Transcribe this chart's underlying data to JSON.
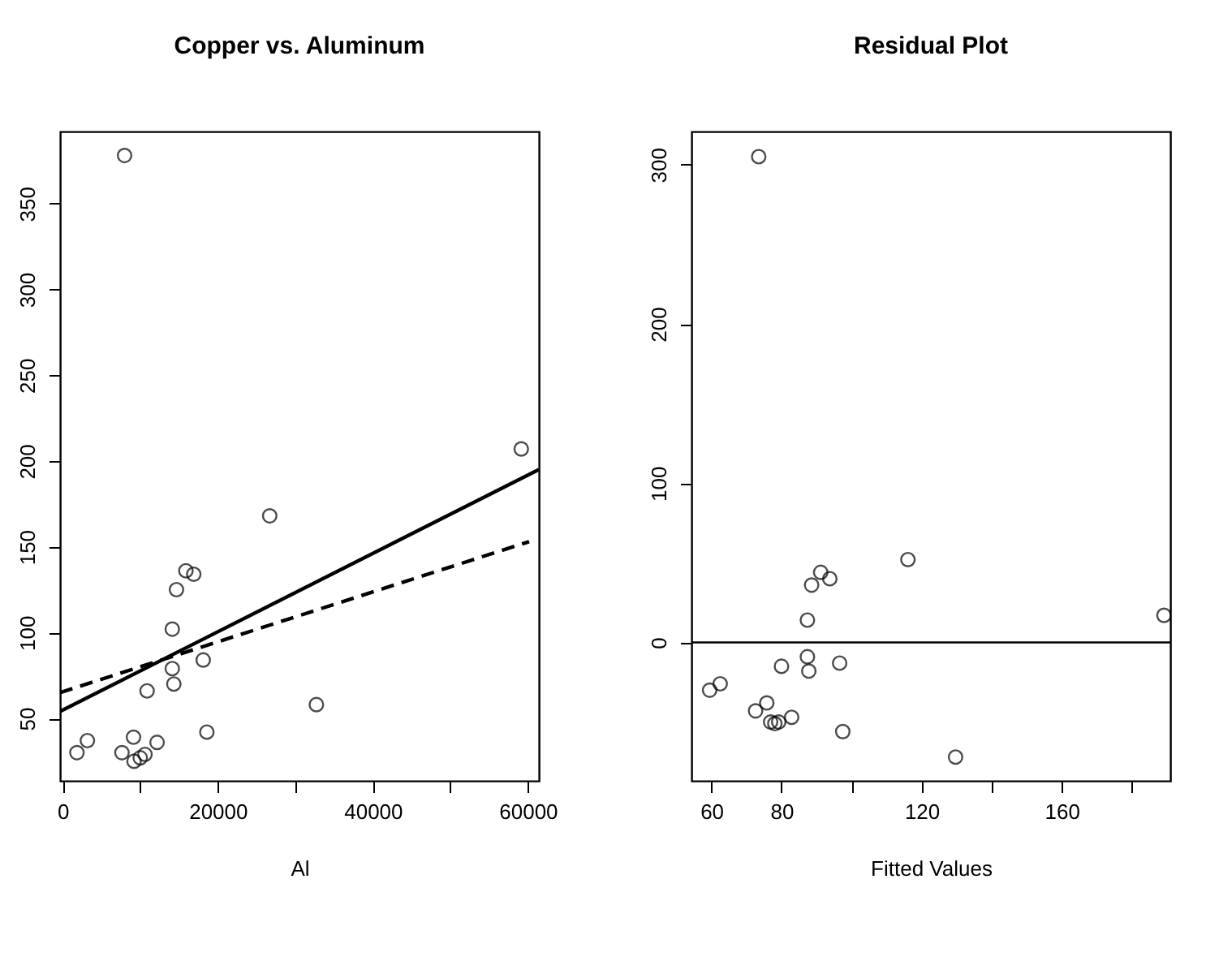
{
  "chart_data": [
    {
      "type": "scatter",
      "title": "Copper vs. Aluminum",
      "xlabel": "Al",
      "marker": "circle",
      "x": [
        7977,
        59150,
        26700,
        15890,
        16900,
        14670,
        14130,
        18120,
        14130,
        14330,
        10880,
        32720,
        18590,
        3180,
        1830,
        9130,
        12170,
        7640,
        10000,
        10610,
        9200
      ],
      "xlim": [
        -345,
        61420
      ],
      "ylim": [
        13.6,
        392
      ],
      "xticks": [
        0,
        {
          "value": 10000,
          "label": null
        },
        20000,
        {
          "value": 30000,
          "label": null
        },
        40000,
        {
          "value": 50000,
          "label": null
        },
        60000
      ],
      "yticks": [
        50,
        100,
        150,
        200,
        250,
        300,
        350
      ],
      "series": [
        {
          "color": "#000000",
          "values": [
            378,
            207,
            168,
            136,
            134,
            125,
            102,
            84,
            79,
            70,
            66,
            58,
            42,
            37,
            30,
            39,
            36,
            30,
            27,
            29,
            25
          ]
        },
        {
          "type": "line",
          "marker": "none",
          "line_style": "solid",
          "color": "#000000",
          "x": [
            -345,
            61420
          ],
          "values": [
            54,
            195
          ]
        },
        {
          "type": "line",
          "marker": "none",
          "line_style": "dashed",
          "color": "#000000",
          "x": [
            -345,
            60160
          ],
          "values": [
            65,
            153
          ]
        }
      ]
    },
    {
      "type": "scatter",
      "title": "Residual Plot",
      "xlabel": "Fitted Values",
      "marker": "circle",
      "x": [
        73.5,
        116.1,
        91.2,
        88.6,
        93.8,
        87.4,
        189.2,
        87.4,
        87.8,
        96.6,
        80,
        59.5,
        62.5,
        72.6,
        75.8,
        76.9,
        78.1,
        79.2,
        82.9,
        97.5,
        129.7
      ],
      "xlim": [
        54.3,
        191
      ],
      "ylim": [
        -86.9,
        320.8
      ],
      "xticks": [
        60,
        80,
        {
          "value": 100,
          "label": null
        },
        120,
        {
          "value": 140,
          "label": null
        },
        160,
        {
          "value": 180,
          "label": null
        }
      ],
      "yticks": [
        0,
        100,
        200,
        300
      ],
      "ref_lines": [
        {
          "axis": "y",
          "value": 0,
          "color": "#000000"
        }
      ],
      "series": [
        {
          "color": "#000000",
          "values": [
            305,
            52,
            44,
            36,
            40,
            14,
            17,
            -9,
            -18,
            -13,
            -15,
            -30,
            -26,
            -43,
            -38,
            -50,
            -51,
            -50,
            -47,
            -56,
            -72
          ]
        }
      ]
    }
  ]
}
